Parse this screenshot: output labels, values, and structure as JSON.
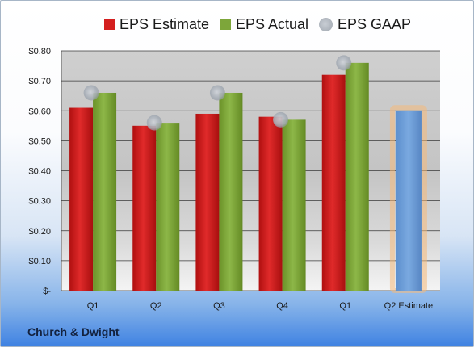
{
  "chart_data": {
    "type": "bar",
    "categories": [
      "Q1",
      "Q2",
      "Q3",
      "Q4",
      "Q1",
      "Q2 Estimate"
    ],
    "series": [
      {
        "name": "EPS Estimate",
        "color": "#d41f1f",
        "values": [
          0.61,
          0.55,
          0.59,
          0.58,
          0.72,
          null
        ]
      },
      {
        "name": "EPS Actual",
        "color": "#7da63a",
        "values": [
          0.66,
          0.56,
          0.66,
          0.57,
          0.76,
          null
        ]
      },
      {
        "name": "EPS GAAP",
        "color": "#b3b9c2",
        "values": [
          0.66,
          0.56,
          0.66,
          0.57,
          0.76,
          null
        ],
        "mark": "circle"
      }
    ],
    "estimate": {
      "category": "Q2 Estimate",
      "value": 0.6,
      "color": "#6e9fd8",
      "glow": "#f5b97a"
    },
    "y_ticks": [
      "$-",
      "$0.10",
      "$0.20",
      "$0.30",
      "$0.40",
      "$0.50",
      "$0.60",
      "$0.70",
      "$0.80"
    ],
    "ylim": [
      0,
      0.8
    ],
    "legend_position": "top",
    "grid": true
  },
  "footer": {
    "company": "Church & Dwight"
  }
}
